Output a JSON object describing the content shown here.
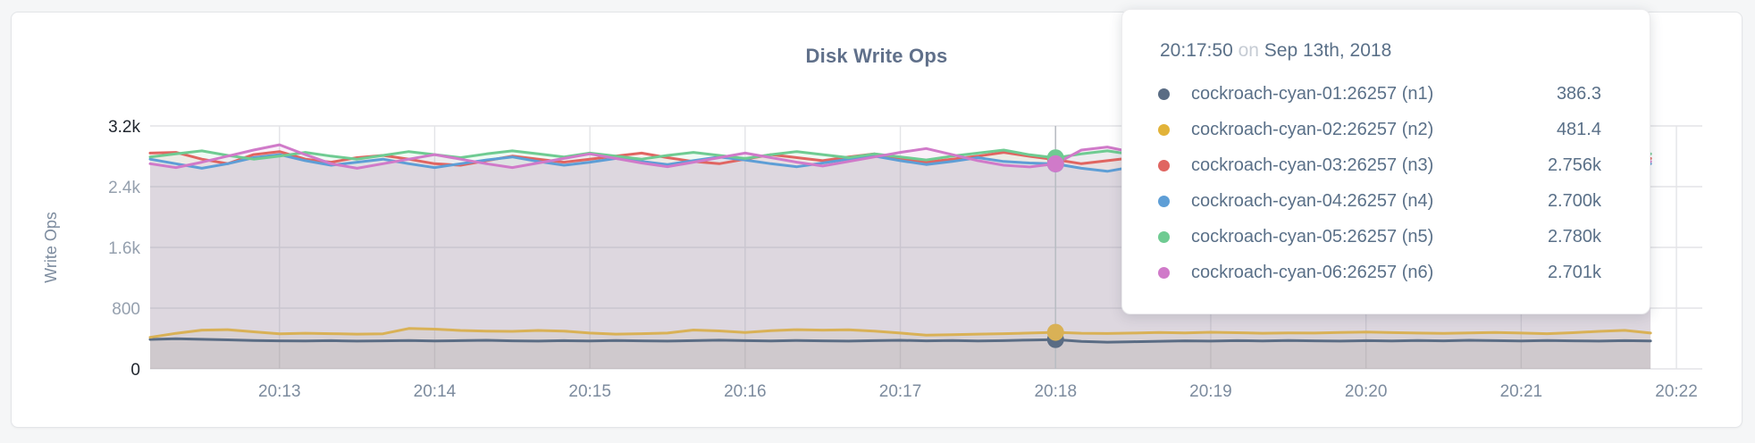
{
  "panel": {
    "title": "Disk Write Ops"
  },
  "colors": {
    "page_bg": "#f5f6f7",
    "panel_border": "#e3e5e8",
    "title_text": "#60708a",
    "grid_line": "#e3e4e7",
    "hover_line": "#b9bdc3",
    "y_tick_major": "#20262e",
    "y_tick_minor": "#95a0ae",
    "x_tick": "#7c8b9e",
    "axis_label": "#7c8b9e",
    "tooltip_text": "#5a7088",
    "tooltip_muted": "#c6ccd4"
  },
  "tooltip": {
    "time": "20:17:50",
    "on_word": "on",
    "date": "Sep 13th, 2018",
    "rows": [
      {
        "label": "cockroach-cyan-01:26257 (n1)",
        "value": "386.3",
        "color": "#5a6c84"
      },
      {
        "label": "cockroach-cyan-02:26257 (n2)",
        "value": "481.4",
        "color": "#e2b339"
      },
      {
        "label": "cockroach-cyan-03:26257 (n3)",
        "value": "2.756k",
        "color": "#e06561"
      },
      {
        "label": "cockroach-cyan-04:26257 (n4)",
        "value": "2.700k",
        "color": "#5e9ed6"
      },
      {
        "label": "cockroach-cyan-05:26257 (n5)",
        "value": "2.780k",
        "color": "#6fcb92"
      },
      {
        "label": "cockroach-cyan-06:26257 (n6)",
        "value": "2.701k",
        "color": "#d07ac9"
      }
    ]
  },
  "chart_data": {
    "type": "line",
    "title": "Disk Write Ops",
    "xlabel": "",
    "ylabel": "Write Ops",
    "ylim": [
      0,
      3200
    ],
    "grid": true,
    "legend_position": "tooltip-overlay",
    "x_start_time": "20:12:10",
    "x_step_seconds": 10,
    "x_total_seconds": 600,
    "y_ticks": [
      {
        "value": 0,
        "label": "0",
        "major": true
      },
      {
        "value": 800,
        "label": "800",
        "major": false
      },
      {
        "value": 1600,
        "label": "1.6k",
        "major": false
      },
      {
        "value": 2400,
        "label": "2.4k",
        "major": false
      },
      {
        "value": 3200,
        "label": "3.2k",
        "major": true
      }
    ],
    "x_ticks": [
      {
        "sec": 50,
        "label": "20:13"
      },
      {
        "sec": 110,
        "label": "20:14"
      },
      {
        "sec": 170,
        "label": "20:15"
      },
      {
        "sec": 230,
        "label": "20:16"
      },
      {
        "sec": 290,
        "label": "20:17"
      },
      {
        "sec": 350,
        "label": "20:18"
      },
      {
        "sec": 410,
        "label": "20:19"
      },
      {
        "sec": 470,
        "label": "20:20"
      },
      {
        "sec": 530,
        "label": "20:21"
      },
      {
        "sec": 590,
        "label": "20:22"
      }
    ],
    "hover_index": 35,
    "hover_time": "20:17:50",
    "series": [
      {
        "name": "cockroach-cyan-01:26257 (n1)",
        "color": "#5a6c84",
        "values": [
          388,
          396,
          390,
          382,
          374,
          370,
          368,
          372,
          366,
          370,
          374,
          368,
          372,
          376,
          370,
          366,
          372,
          368,
          374,
          370,
          366,
          372,
          378,
          372,
          368,
          374,
          370,
          366,
          372,
          376,
          370,
          374,
          368,
          372,
          380,
          386.3,
          362,
          352,
          358,
          364,
          370,
          366,
          372,
          368,
          374,
          370,
          366,
          372,
          368,
          374,
          370,
          376,
          372,
          368,
          374,
          370,
          366,
          372,
          368
        ]
      },
      {
        "name": "cockroach-cyan-02:26257 (n2)",
        "color": "#d9b156",
        "values": [
          415,
          468,
          510,
          516,
          488,
          462,
          470,
          464,
          458,
          462,
          532,
          524,
          506,
          498,
          494,
          506,
          498,
          472,
          458,
          464,
          472,
          512,
          500,
          480,
          504,
          516,
          510,
          514,
          498,
          472,
          444,
          450,
          458,
          464,
          472,
          481.4,
          470,
          466,
          472,
          480,
          474,
          482,
          477,
          470,
          474,
          472,
          480,
          485,
          478,
          472,
          467,
          474,
          480,
          472,
          464,
          477,
          494,
          507,
          472
        ]
      },
      {
        "name": "cockroach-cyan-03:26257 (n3)",
        "color": "#e06561",
        "values": [
          2842,
          2852,
          2762,
          2702,
          2822,
          2862,
          2762,
          2722,
          2782,
          2812,
          2762,
          2702,
          2682,
          2742,
          2802,
          2762,
          2722,
          2762,
          2802,
          2842,
          2782,
          2732,
          2702,
          2762,
          2822,
          2782,
          2742,
          2792,
          2832,
          2772,
          2722,
          2762,
          2802,
          2852,
          2800,
          2756,
          2702,
          2742,
          2782,
          2742,
          2702,
          2762,
          2812,
          2772,
          2722,
          2682,
          2742,
          2792,
          2842,
          2782,
          2732,
          2772,
          2822,
          2762,
          2702,
          2752,
          2802,
          2762,
          2772
        ]
      },
      {
        "name": "cockroach-cyan-04:26257 (n4)",
        "color": "#5e9ed6",
        "values": [
          2762,
          2702,
          2642,
          2702,
          2782,
          2822,
          2742,
          2682,
          2722,
          2762,
          2702,
          2652,
          2702,
          2752,
          2792,
          2732,
          2682,
          2722,
          2772,
          2732,
          2692,
          2742,
          2792,
          2752,
          2702,
          2662,
          2712,
          2762,
          2802,
          2742,
          2692,
          2732,
          2782,
          2732,
          2712,
          2700,
          2642,
          2602,
          2662,
          2722,
          2762,
          2712,
          2672,
          2722,
          2772,
          2732,
          2692,
          2742,
          2782,
          2742,
          2702,
          2662,
          2712,
          2752,
          2712,
          2682,
          2732,
          2772,
          2702
        ]
      },
      {
        "name": "cockroach-cyan-05:26257 (n5)",
        "color": "#6fcb92",
        "values": [
          2792,
          2832,
          2872,
          2812,
          2762,
          2802,
          2852,
          2802,
          2762,
          2812,
          2862,
          2822,
          2782,
          2832,
          2872,
          2832,
          2792,
          2842,
          2802,
          2762,
          2812,
          2852,
          2812,
          2772,
          2822,
          2862,
          2822,
          2782,
          2832,
          2792,
          2752,
          2802,
          2842,
          2882,
          2820,
          2780,
          2832,
          2872,
          2822,
          2782,
          2742,
          2792,
          2842,
          2802,
          2762,
          2812,
          2852,
          2812,
          2772,
          2822,
          2782,
          2742,
          2792,
          2832,
          2792,
          2752,
          2802,
          2842,
          2832
        ]
      },
      {
        "name": "cockroach-cyan-06:26257 (n6)",
        "color": "#d07ac9",
        "values": [
          2702,
          2652,
          2722,
          2802,
          2882,
          2952,
          2822,
          2702,
          2642,
          2702,
          2762,
          2822,
          2762,
          2702,
          2652,
          2712,
          2772,
          2832,
          2772,
          2712,
          2662,
          2722,
          2782,
          2842,
          2782,
          2722,
          2672,
          2732,
          2792,
          2852,
          2902,
          2822,
          2742,
          2682,
          2660,
          2701,
          2882,
          2922,
          2852,
          2772,
          2702,
          2652,
          2712,
          2772,
          2832,
          2772,
          2712,
          2662,
          2722,
          2782,
          2842,
          2782,
          2722,
          2672,
          2732,
          2792,
          2852,
          2792,
          2732
        ]
      }
    ]
  }
}
